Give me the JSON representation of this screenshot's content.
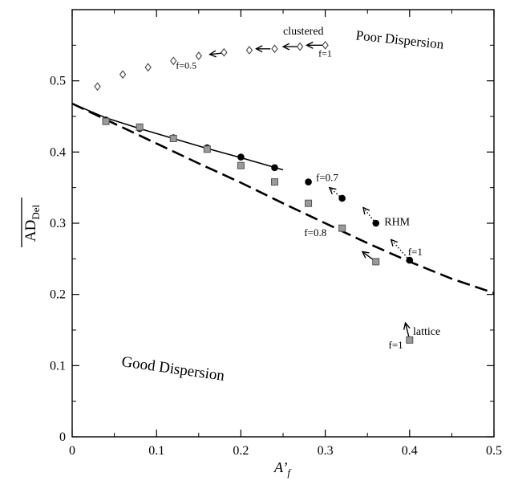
{
  "chart_data": {
    "type": "scatter",
    "title": "",
    "xlabel_main": "A’",
    "xlabel_sub": "f",
    "ylabel_main": "AD",
    "ylabel_sub": "Del",
    "xlim": [
      0,
      0.5
    ],
    "ylim": [
      0,
      0.6
    ],
    "xticks": [
      0,
      0.1,
      0.2,
      0.3,
      0.4,
      0.5
    ],
    "xtick_labels": [
      "0",
      "0.1",
      "0.2",
      "0.3",
      "0.4",
      "0.5"
    ],
    "yticks": [
      0,
      0.1,
      0.2,
      0.3,
      0.4,
      0.5
    ],
    "ytick_labels": [
      "0",
      "0.1",
      "0.2",
      "0.3",
      "0.4",
      "0.5"
    ],
    "grid": false,
    "region_labels": {
      "poor": "Poor Dispersion",
      "good": "Good Dispersion"
    },
    "series": [
      {
        "key": "clustered",
        "marker": "diamond",
        "points": [
          [
            0.03,
            0.492
          ],
          [
            0.06,
            0.509
          ],
          [
            0.09,
            0.519
          ],
          [
            0.12,
            0.528
          ],
          [
            0.15,
            0.535
          ],
          [
            0.18,
            0.54
          ],
          [
            0.21,
            0.543
          ],
          [
            0.24,
            0.545
          ],
          [
            0.27,
            0.548
          ],
          [
            0.3,
            0.55
          ]
        ]
      },
      {
        "key": "rhm",
        "marker": "circle",
        "points": [
          [
            0.04,
            0.445
          ],
          [
            0.08,
            0.433
          ],
          [
            0.12,
            0.42
          ],
          [
            0.16,
            0.406
          ],
          [
            0.2,
            0.393
          ],
          [
            0.24,
            0.378
          ],
          [
            0.28,
            0.358
          ],
          [
            0.32,
            0.335
          ],
          [
            0.36,
            0.3
          ],
          [
            0.4,
            0.248
          ]
        ]
      },
      {
        "key": "lattice",
        "marker": "square",
        "points": [
          [
            0.04,
            0.443
          ],
          [
            0.08,
            0.435
          ],
          [
            0.12,
            0.419
          ],
          [
            0.16,
            0.404
          ],
          [
            0.2,
            0.381
          ],
          [
            0.24,
            0.358
          ],
          [
            0.28,
            0.328
          ],
          [
            0.32,
            0.293
          ],
          [
            0.36,
            0.246
          ],
          [
            0.4,
            0.136
          ]
        ]
      }
    ],
    "fit_solid": [
      [
        0.0,
        0.468
      ],
      [
        0.04,
        0.448
      ],
      [
        0.08,
        0.433
      ],
      [
        0.12,
        0.419
      ],
      [
        0.16,
        0.405
      ],
      [
        0.2,
        0.392
      ],
      [
        0.25,
        0.375
      ]
    ],
    "fit_dashed": [
      [
        0.0,
        0.468
      ],
      [
        0.05,
        0.44
      ],
      [
        0.1,
        0.412
      ],
      [
        0.15,
        0.384
      ],
      [
        0.2,
        0.357
      ],
      [
        0.25,
        0.328
      ],
      [
        0.3,
        0.3
      ],
      [
        0.35,
        0.272
      ],
      [
        0.4,
        0.246
      ],
      [
        0.45,
        0.222
      ],
      [
        0.5,
        0.202
      ]
    ],
    "arrows": [
      {
        "from": [
          0.235,
          0.545
        ],
        "to": [
          0.218,
          0.545
        ],
        "style": "solid"
      },
      {
        "from": [
          0.268,
          0.548
        ],
        "to": [
          0.25,
          0.548
        ],
        "style": "solid"
      },
      {
        "from": [
          0.297,
          0.55
        ],
        "to": [
          0.278,
          0.55
        ],
        "style": "solid"
      },
      {
        "from": [
          0.178,
          0.539
        ],
        "to": [
          0.163,
          0.537
        ],
        "style": "solid"
      },
      {
        "from": [
          0.32,
          0.335
        ],
        "to": [
          0.305,
          0.35
        ],
        "style": "dotted"
      },
      {
        "from": [
          0.36,
          0.3
        ],
        "to": [
          0.345,
          0.322
        ],
        "style": "dotted"
      },
      {
        "from": [
          0.4,
          0.248
        ],
        "to": [
          0.378,
          0.277
        ],
        "style": "dotted"
      },
      {
        "from": [
          0.36,
          0.246
        ],
        "to": [
          0.344,
          0.26
        ],
        "style": "solid"
      },
      {
        "from": [
          0.4,
          0.136
        ],
        "to": [
          0.395,
          0.16
        ],
        "style": "solid"
      }
    ],
    "annotations": [
      {
        "text": "clustered",
        "x": 0.25,
        "y": 0.565,
        "anchor": "start",
        "size": 14
      },
      {
        "text": "f=1",
        "x": 0.292,
        "y": 0.534,
        "anchor": "start",
        "size": 12
      },
      {
        "text": "f=0.5",
        "x": 0.123,
        "y": 0.517,
        "anchor": "start",
        "size": 12
      },
      {
        "text": "f=0.7",
        "x": 0.289,
        "y": 0.359,
        "anchor": "start",
        "size": 13
      },
      {
        "text": "RHM",
        "x": 0.37,
        "y": 0.297,
        "anchor": "start",
        "size": 14
      },
      {
        "text": "f=0.8",
        "x": 0.275,
        "y": 0.282,
        "anchor": "start",
        "size": 13
      },
      {
        "text": "f=1",
        "x": 0.398,
        "y": 0.255,
        "anchor": "start",
        "size": 13
      },
      {
        "text": "f=1",
        "x": 0.375,
        "y": 0.124,
        "anchor": "start",
        "size": 13
      },
      {
        "text": "lattice",
        "x": 0.404,
        "y": 0.143,
        "anchor": "start",
        "size": 14
      }
    ]
  }
}
